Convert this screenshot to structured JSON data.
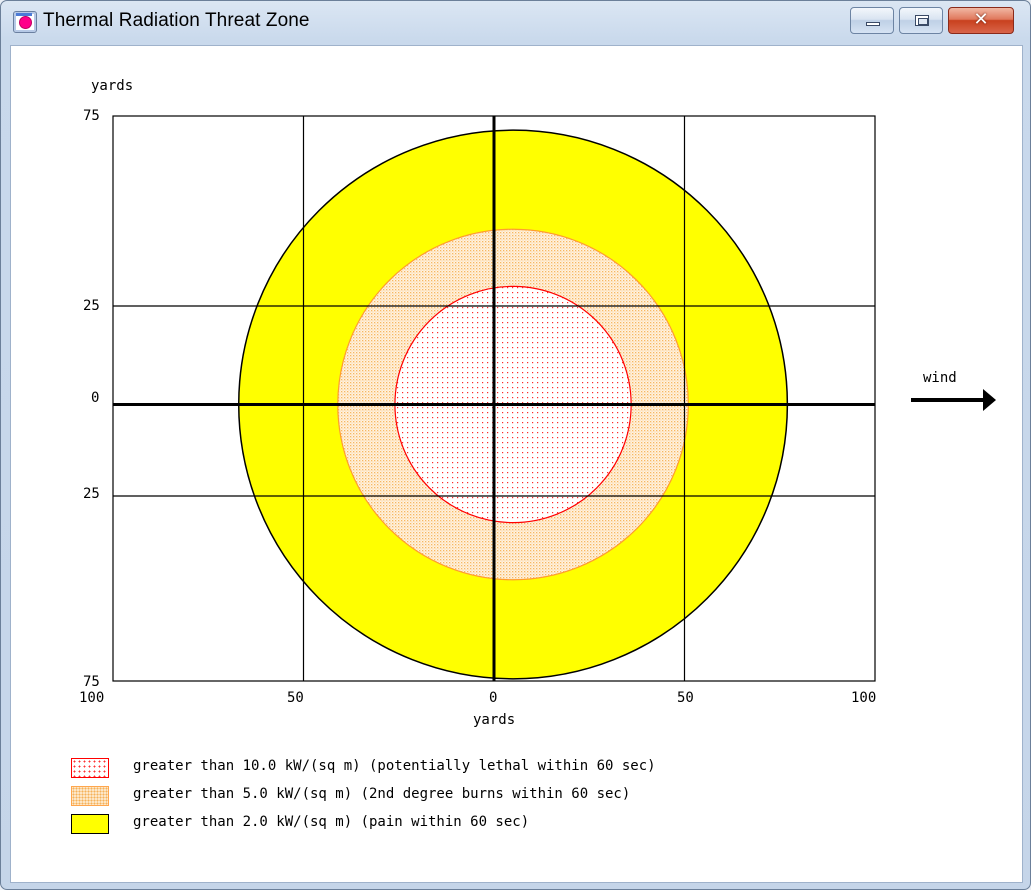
{
  "window": {
    "title": "Thermal Radiation Threat Zone",
    "buttons": {
      "minimize": "minimize",
      "maximize": "maximize",
      "close": "close"
    }
  },
  "plot": {
    "y_unit_label": "yards",
    "x_unit_label": "yards",
    "y_ticks": [
      "75",
      "25",
      "0",
      "25",
      "75"
    ],
    "x_ticks": [
      "100",
      "50",
      "0",
      "50",
      "100"
    ],
    "wind_label": "wind"
  },
  "legend": [
    {
      "text": "greater than 10.0 kW/(sq m) (potentially lethal within 60 sec)",
      "fill": "#ffffff",
      "stroke": "#ff0000",
      "pattern": "red-dots"
    },
    {
      "text": "greater than 5.0 kW/(sq m) (2nd degree burns within 60 sec)",
      "fill": "#fde5c4",
      "stroke": "#ff9900",
      "pattern": "orange-dots"
    },
    {
      "text": "greater than 2.0 kW/(sq m) (pain within 60 sec)",
      "fill": "#ffff00",
      "stroke": "#000000",
      "pattern": "solid"
    }
  ],
  "chart_data": {
    "type": "threat-zone-map",
    "x_ticks": [
      -100,
      -50,
      0,
      50,
      100
    ],
    "y_ticks": [
      75,
      25,
      0,
      -25,
      -75
    ],
    "xlim": [
      -100,
      100
    ],
    "ylim": [
      -75,
      75
    ],
    "grid": true,
    "zones": [
      {
        "name": "greater than 2.0 kW/(sq m)",
        "center_x": 5,
        "radius": 72,
        "color": "#ffff00"
      },
      {
        "name": "greater than 5.0 kW/(sq m)",
        "center_x": 5,
        "radius": 46,
        "color": "#fde5c4"
      },
      {
        "name": "greater than 10.0 kW/(sq m)",
        "center_x": 5,
        "radius": 31,
        "color": "#ffffff"
      }
    ],
    "wind_direction": "right"
  }
}
